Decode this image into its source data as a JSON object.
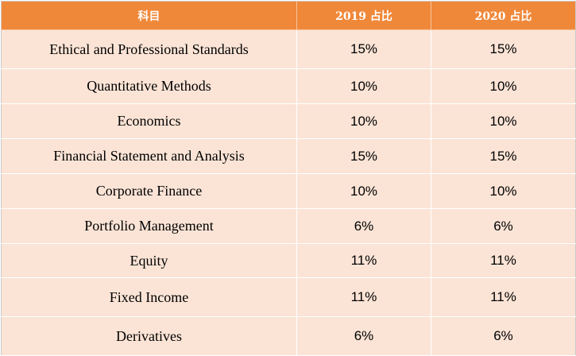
{
  "table": {
    "headers": {
      "subject": "科目",
      "y2019": "2019 占比",
      "y2020": "2020 占比"
    },
    "rows": [
      {
        "subject": "Ethical and Professional Standards",
        "y2019": "15%",
        "y2020": "15%"
      },
      {
        "subject": "Quantitative Methods",
        "y2019": "10%",
        "y2020": "10%"
      },
      {
        "subject": "Economics",
        "y2019": "10%",
        "y2020": "10%"
      },
      {
        "subject": "Financial Statement and Analysis",
        "y2019": "15%",
        "y2020": "15%"
      },
      {
        "subject": "Corporate Finance",
        "y2019": "10%",
        "y2020": "10%"
      },
      {
        "subject": "Portfolio Management",
        "y2019": "6%",
        "y2020": "6%"
      },
      {
        "subject": "Equity",
        "y2019": "11%",
        "y2020": "11%"
      },
      {
        "subject": "Fixed Income",
        "y2019": "11%",
        "y2020": "11%"
      },
      {
        "subject": "Derivatives",
        "y2019": "6%",
        "y2020": "6%"
      }
    ]
  },
  "colors": {
    "header_bg": "#f0883a",
    "row_bg": "#fbe4d6"
  }
}
